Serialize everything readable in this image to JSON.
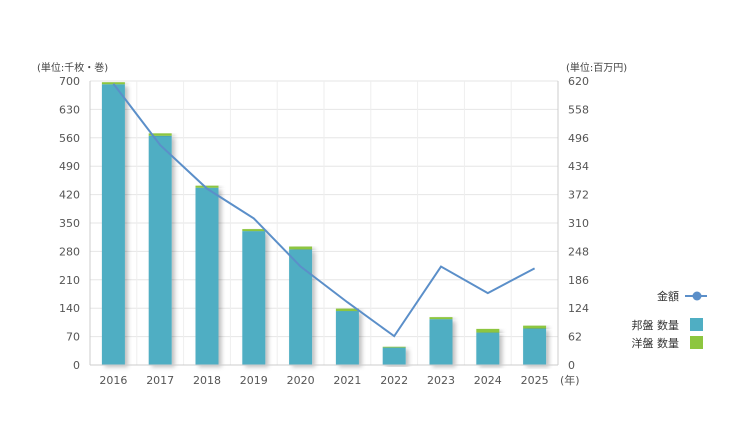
{
  "chart_data": {
    "type": "bar",
    "title": "",
    "units": {
      "left": "(単位:千枚・巻)",
      "right": "(単位:百万円)",
      "x": "(年)"
    },
    "categories": [
      "2016",
      "2017",
      "2018",
      "2019",
      "2020",
      "2021",
      "2022",
      "2023",
      "2024",
      "2025"
    ],
    "y_left": {
      "min": 0,
      "max": 700,
      "ticks": [
        "0",
        "70",
        "140",
        "210",
        "280",
        "350",
        "420",
        "490",
        "560",
        "630",
        "700"
      ]
    },
    "y_right": {
      "min": 0,
      "max": 620,
      "ticks": [
        "0",
        "62",
        "124",
        "186",
        "248",
        "310",
        "372",
        "434",
        "496",
        "558",
        "620"
      ]
    },
    "series": [
      {
        "name": "邦盤 数量",
        "type": "bar",
        "axis": "left",
        "color": "#4faec3",
        "stack": "qty",
        "values": [
          692,
          565,
          437,
          330,
          285,
          133,
          43,
          113,
          80,
          90
        ]
      },
      {
        "name": "洋盤 数量",
        "type": "bar",
        "axis": "left",
        "color": "#8dc63f",
        "stack": "qty",
        "values": [
          5,
          6,
          5,
          5,
          7,
          6,
          2,
          5,
          9,
          7
        ]
      },
      {
        "name": "金額",
        "type": "line",
        "axis": "right",
        "color": "#5b8fc9",
        "values": [
          614,
          480,
          385,
          320,
          215,
          137,
          63,
          215,
          157,
          211
        ]
      }
    ],
    "legend": {
      "position": "right",
      "items": [
        {
          "label": "金額",
          "kind": "line",
          "color": "#5b8fc9"
        },
        {
          "label": "邦盤 数量",
          "kind": "bar",
          "color": "#4faec3"
        },
        {
          "label": "洋盤 数量",
          "kind": "bar",
          "color": "#8dc63f"
        }
      ]
    },
    "grid": true
  }
}
